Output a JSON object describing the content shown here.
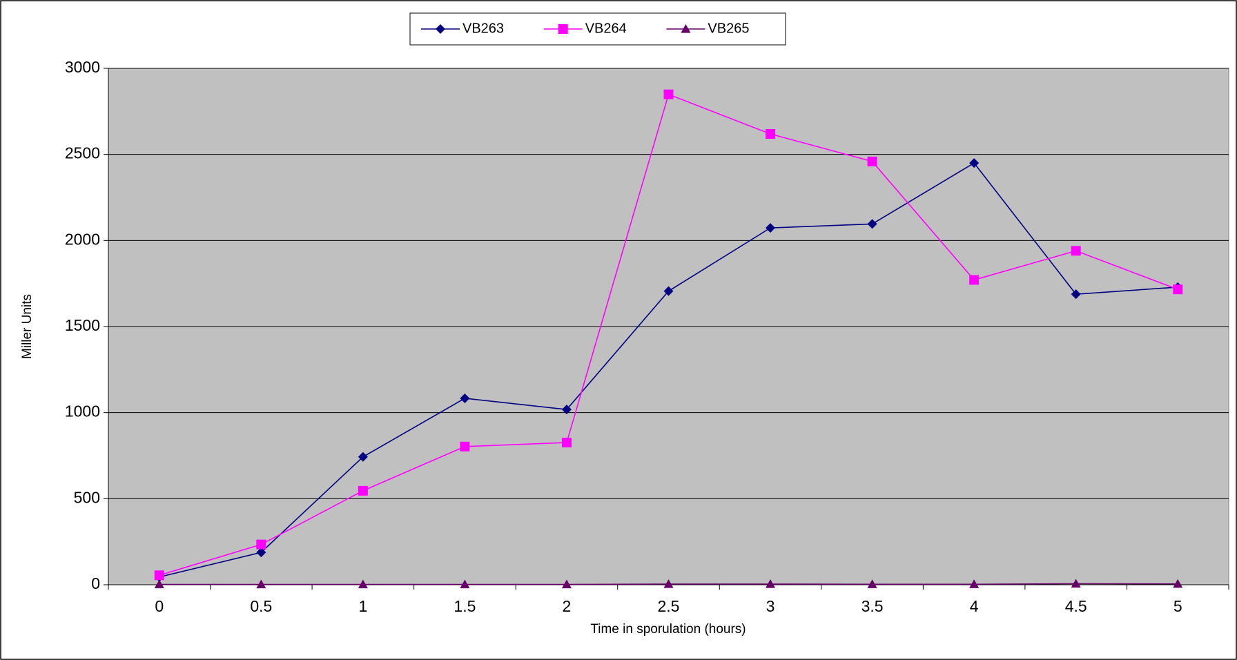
{
  "chart_data": {
    "type": "line",
    "x_label": "Time in sporulation (hours)",
    "y_label": "Miller Units",
    "categories": [
      "0",
      "0.5",
      "1",
      "1.5",
      "2",
      "2.5",
      "3",
      "3.5",
      "4",
      "4.5",
      "5"
    ],
    "series": [
      {
        "name": "VB263",
        "color": "#000080",
        "marker": "diamond",
        "values": [
          45,
          188,
          743,
          1083,
          1018,
          1706,
          2073,
          2096,
          2450,
          1688,
          1729
        ]
      },
      {
        "name": "VB264",
        "color": "#ff00ff",
        "marker": "square",
        "values": [
          55,
          234,
          546,
          803,
          826,
          2849,
          2619,
          2459,
          1771,
          1940,
          1716
        ]
      },
      {
        "name": "VB265",
        "color": "#660066",
        "marker": "triangle",
        "values": [
          2,
          2,
          2,
          2,
          2,
          4,
          4,
          3,
          3,
          6,
          5
        ]
      }
    ],
    "ylim": [
      0,
      3000
    ],
    "yticks": [
      0,
      500,
      1000,
      1500,
      2000,
      2500,
      3000
    ],
    "grid": true,
    "legend": "top"
  }
}
